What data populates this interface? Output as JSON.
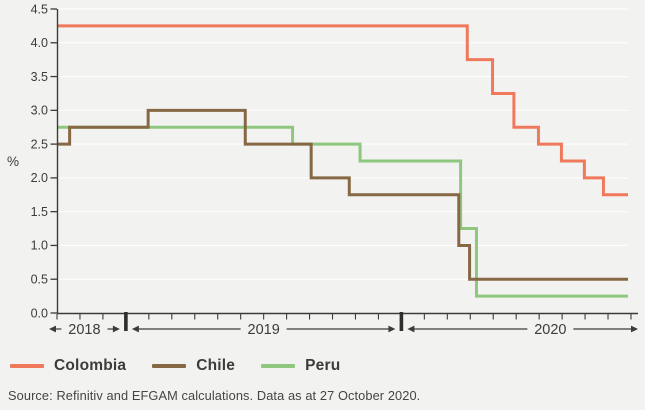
{
  "source": {
    "text": "Source: Refinitiv and EFGAM calculations. Data as at 27 October 2020."
  },
  "colors": {
    "background": "#F2F2F1",
    "grid": "#FFFFFF",
    "axis": "#3C3C3B",
    "text": "#3C3C3B",
    "separator": "#2E2E2D",
    "colombia": "#F0795C",
    "chile": "#876845",
    "peru": "#8EC77E"
  },
  "chart_data": {
    "type": "line",
    "subtype": "step-after",
    "title": "",
    "xlabel": "",
    "ylabel": "%",
    "ylim": [
      0,
      4.5
    ],
    "ytick_step": 0.5,
    "ytick_labels": [
      "0.0",
      "0.5",
      "1.0",
      "1.5",
      "2.0",
      "2.5",
      "3.0",
      "3.5",
      "4.0",
      "4.5"
    ],
    "grid": true,
    "x_axis": {
      "unit": "months since Oct 2018",
      "range": [
        0,
        24.87
      ],
      "month_ticks": 25,
      "year_spans": [
        {
          "label": "2018",
          "start": 0,
          "end": 3,
          "label_pos": 0.5
        },
        {
          "label": "2019",
          "start": 3,
          "end": 15,
          "label_pos": 0.5
        },
        {
          "label": "2020",
          "start": 15,
          "end": 24.87,
          "label_pos": 0.62
        }
      ]
    },
    "legend": {
      "position": "bottom-left"
    },
    "series": [
      {
        "name": "Colombia",
        "color": "#F0795C",
        "steps": [
          [
            0,
            4.25
          ],
          [
            17.87,
            3.75
          ],
          [
            18.97,
            3.25
          ],
          [
            19.9,
            2.75
          ],
          [
            20.97,
            2.5
          ],
          [
            21.97,
            2.25
          ],
          [
            22.97,
            2.0
          ],
          [
            23.8,
            1.75
          ]
        ]
      },
      {
        "name": "Chile",
        "color": "#876845",
        "steps": [
          [
            0,
            2.5
          ],
          [
            0.55,
            2.75
          ],
          [
            3.97,
            3.0
          ],
          [
            8.2,
            2.5
          ],
          [
            11.07,
            2.0
          ],
          [
            12.73,
            1.75
          ],
          [
            17.5,
            1.0
          ],
          [
            17.97,
            0.5
          ]
        ]
      },
      {
        "name": "Peru",
        "color": "#8EC77E",
        "steps": [
          [
            0,
            2.75
          ],
          [
            10.26,
            2.5
          ],
          [
            13.2,
            2.25
          ],
          [
            17.58,
            1.25
          ],
          [
            18.27,
            0.25
          ]
        ]
      }
    ]
  }
}
